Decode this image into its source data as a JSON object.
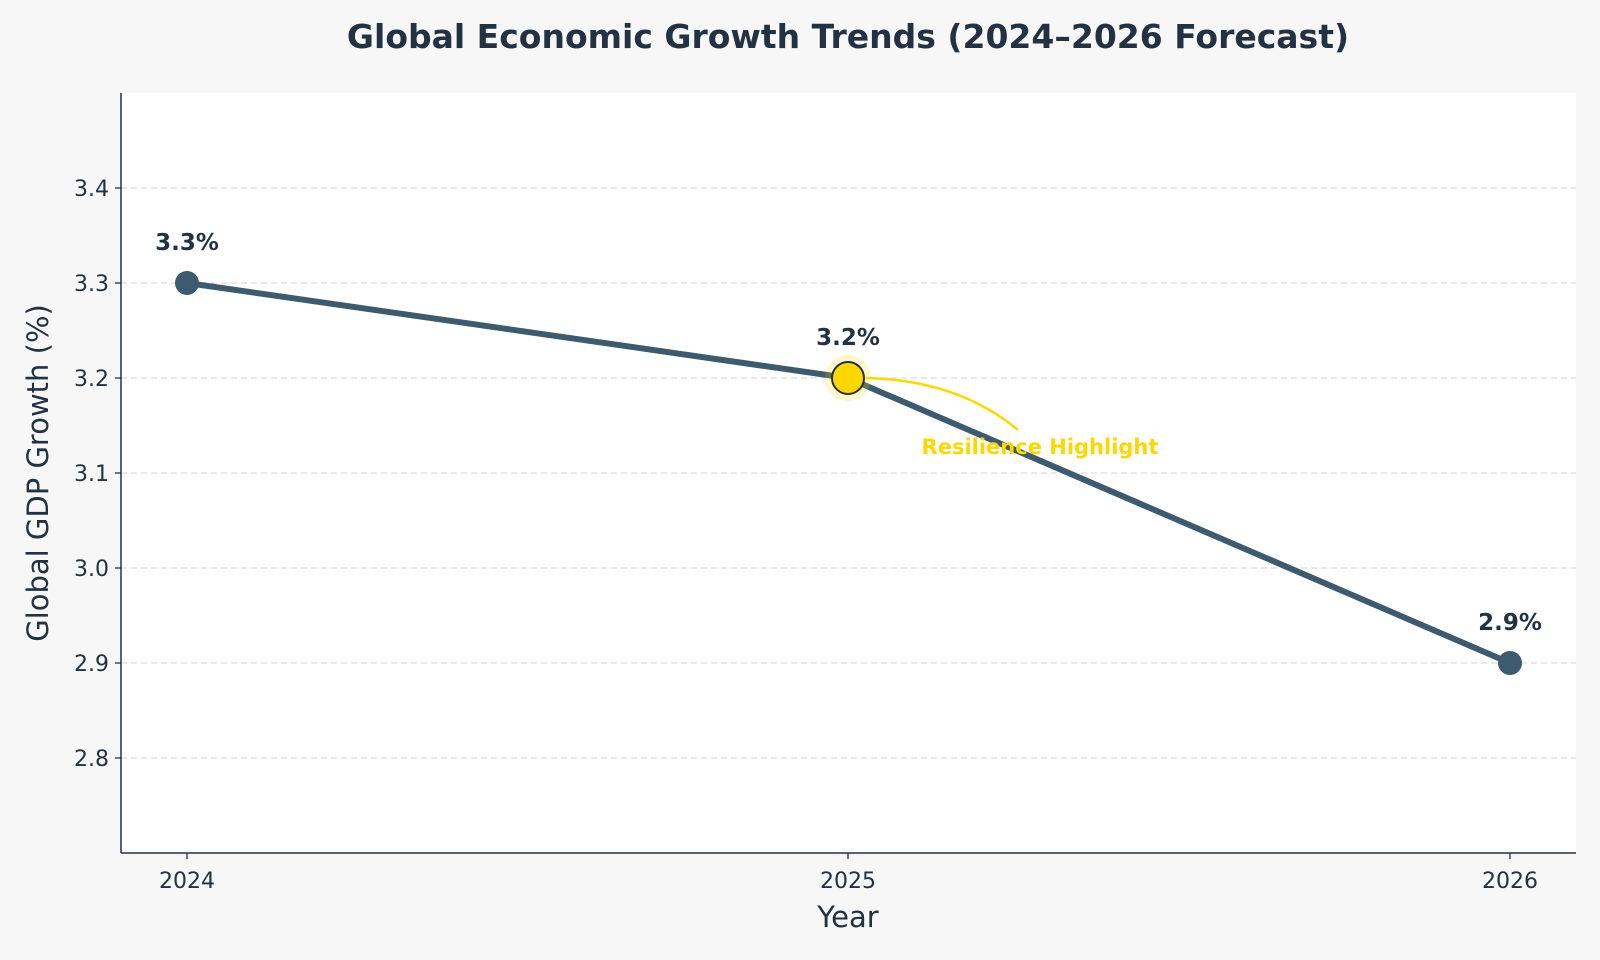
{
  "chart_data": {
    "type": "line",
    "title": "Global Economic Growth Trends (2024–2026 Forecast)",
    "xlabel": "Year",
    "ylabel": "Global GDP Growth (%)",
    "categories": [
      "2024",
      "2025",
      "2026"
    ],
    "values": [
      3.3,
      3.2,
      2.9
    ],
    "data_labels": [
      "3.3%",
      "3.2%",
      "2.9%"
    ],
    "ylim": [
      2.7,
      3.5
    ],
    "yticks": [
      2.8,
      2.9,
      3.0,
      3.1,
      3.2,
      3.3,
      3.4
    ],
    "ytick_labels": [
      "2.8",
      "2.9",
      "3.0",
      "3.1",
      "3.2",
      "3.3",
      "3.4"
    ],
    "grid": true,
    "highlight": {
      "index": 1,
      "label": "Resilience Highlight"
    },
    "colors": {
      "line": "#3d5a6e",
      "highlight": "#ffd700",
      "text": "#233242",
      "grid": "#d9d9d9",
      "plot_bg": "#ffffff",
      "page_bg": "#f7f7f7"
    }
  }
}
